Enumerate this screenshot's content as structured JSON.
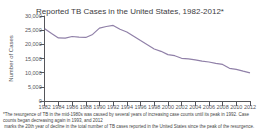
{
  "chart_data": {
    "type": "line",
    "title": "Reported TB Cases in the United States, 1982-2012*",
    "ylabel": "Number of Cases",
    "x": [
      1982,
      1983,
      1984,
      1985,
      1986,
      1987,
      1988,
      1989,
      1990,
      1991,
      1992,
      1993,
      1994,
      1995,
      1996,
      1997,
      1998,
      1999,
      2000,
      2001,
      2002,
      2003,
      2004,
      2005,
      2006,
      2007,
      2008,
      2009,
      2010,
      2011,
      2012
    ],
    "values": [
      25520,
      23846,
      22255,
      22201,
      22768,
      22517,
      22436,
      23495,
      25701,
      26283,
      26673,
      25313,
      24361,
      22860,
      21337,
      19855,
      18361,
      17531,
      16377,
      15989,
      15078,
      14871,
      14511,
      14093,
      13767,
      13293,
      12898,
      11545,
      11182,
      10528,
      9951
    ],
    "color": "#9080a8",
    "xlim": [
      1982,
      2012
    ],
    "xticks": [
      1982,
      1984,
      1986,
      1988,
      1990,
      1992,
      1994,
      1996,
      1998,
      2000,
      2002,
      2004,
      2006,
      2008,
      2010,
      2012
    ],
    "ylim": [
      0,
      30000
    ],
    "yticks": [
      0,
      {
        "value": 5000,
        "label": "5,000"
      },
      {
        "value": 10000,
        "label": "10,000"
      },
      {
        "value": 15000,
        "label": "15,000"
      },
      {
        "value": 20000,
        "label": "20,000"
      },
      {
        "value": 25000,
        "label": "25,000"
      },
      {
        "value": 30000,
        "label": "30,000"
      }
    ],
    "annotations": [
      "*The resurgence of TB in the mid-1980s was caused by several years of increasing case counts until its peak in 1992. Case counts began decreasing again in 1993, and 2012",
      " marks the 20th year of decline in the total number of TB cases reported in the United States since the peak of the resurgence."
    ],
    "grid": false
  }
}
